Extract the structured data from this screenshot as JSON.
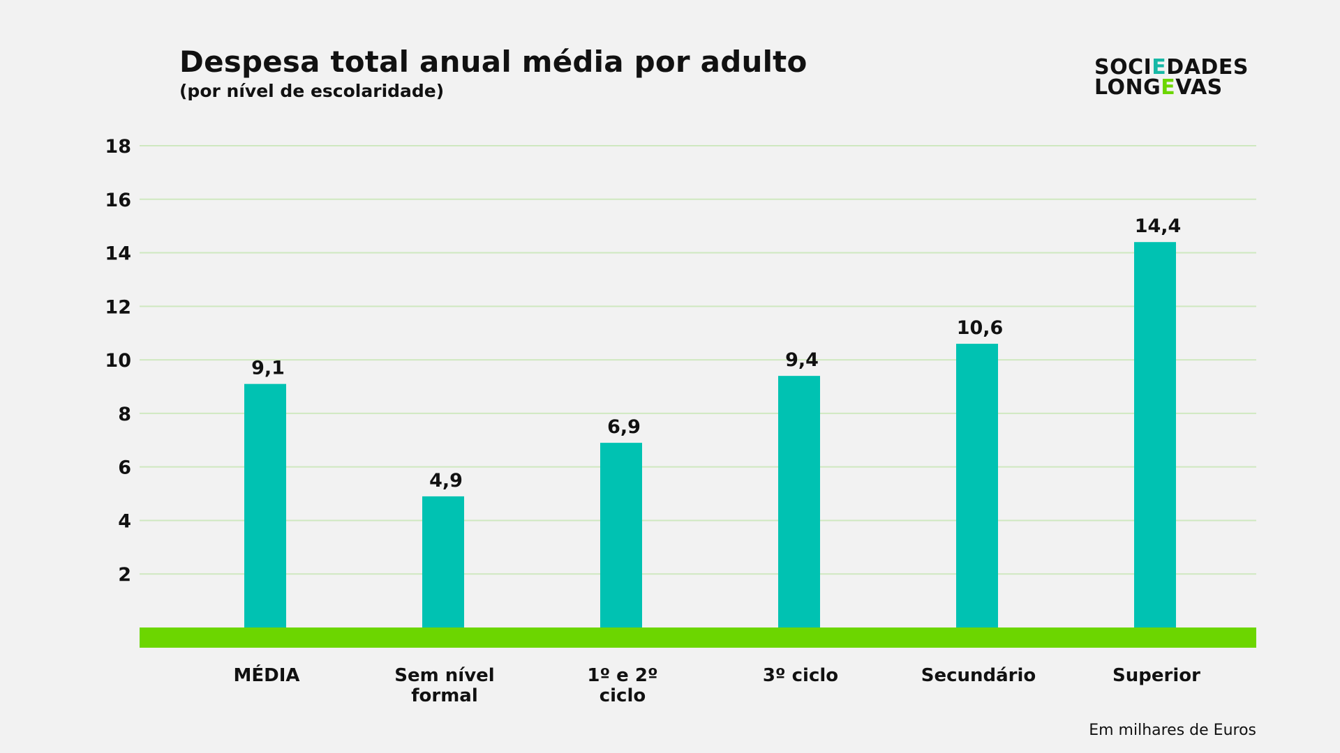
{
  "header": {
    "title": "Despesa total anual média por adulto",
    "subtitle": "(por nível de escolaridade)"
  },
  "logo": {
    "line1_a": "SOCI",
    "line1_b": "E",
    "line1_c": "DADES",
    "line2_a": "LONG",
    "line2_b": "E",
    "line2_c": "VAS"
  },
  "footnote": "Em milhares de Euros",
  "colors": {
    "bar": "#00c2b2",
    "baseline": "#6cd600",
    "grid": "#cfe8c0",
    "background": "#f2f2f2"
  },
  "chart_data": {
    "type": "bar",
    "title": "Despesa total anual média por adulto",
    "subtitle": "(por nível de escolaridade)",
    "xlabel": "",
    "ylabel": "",
    "unit_note": "Em milhares de Euros",
    "ylim": [
      0,
      18
    ],
    "yticks": [
      2,
      4,
      6,
      8,
      10,
      12,
      14,
      16,
      18
    ],
    "grid": true,
    "categories": [
      [
        "MÉDIA"
      ],
      [
        "Sem nível",
        "formal"
      ],
      [
        "1º e 2º",
        "ciclo"
      ],
      [
        "3º ciclo"
      ],
      [
        "Secundário"
      ],
      [
        "Superior"
      ]
    ],
    "values": [
      9.1,
      4.9,
      6.9,
      9.4,
      10.6,
      14.4
    ],
    "value_labels": [
      "9,1",
      "4,9",
      "6,9",
      "9,4",
      "10,6",
      "14,4"
    ]
  }
}
